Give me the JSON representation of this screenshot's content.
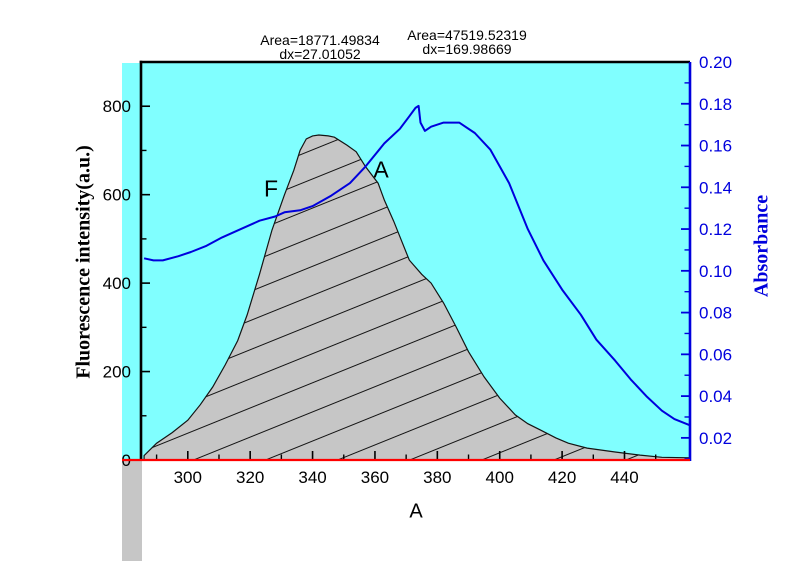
{
  "colors": {
    "figure_background": "#FFFFFF",
    "plot_background": "#80FFFF",
    "fluorescence_fill": "#C6C6C6",
    "fluorescence_outline": "#141414",
    "hatch_line": "#141414",
    "absorbance_line": "#0000DD",
    "right_axis": "#0000DD",
    "bottom_axis": "#FF0000",
    "frame": "#000000"
  },
  "chart_data": {
    "type": "line",
    "title": "",
    "annotations": {
      "block1": {
        "line1": "Area=18771.49834",
        "line2": "dx=27.01052"
      },
      "block2": {
        "line1": "Area=47519.52319",
        "line2": "dx=169.98669"
      }
    },
    "curve_labels": {
      "fluorescence": "F",
      "absorbance": "A"
    },
    "x_axis": {
      "label": "A",
      "range": [
        285,
        461
      ],
      "major_ticks": [
        "300",
        "320",
        "340",
        "360",
        "380",
        "400",
        "420",
        "440"
      ],
      "minor_ticks": [
        290,
        310,
        330,
        350,
        370,
        390,
        410,
        430,
        450
      ]
    },
    "y_left": {
      "label": "Fluorescence intensity(a.u.)",
      "range": [
        0,
        900
      ],
      "major_ticks": [
        "0",
        "200",
        "400",
        "600",
        "800"
      ],
      "minor_ticks": [
        100,
        300,
        500,
        700
      ]
    },
    "y_right": {
      "label": "Absorbance",
      "range": [
        0.0094,
        0.2
      ],
      "major_ticks": [
        "0.02",
        "0.04",
        "0.06",
        "0.08",
        "0.10",
        "0.12",
        "0.14",
        "0.16",
        "0.18",
        "0.20"
      ],
      "minor_ticks": [
        0.01,
        0.03,
        0.05,
        0.07,
        0.09,
        0.11,
        0.13,
        0.15,
        0.17,
        0.19
      ]
    },
    "series": [
      {
        "name": "F",
        "axis": "left",
        "style": "filled_hatched_area",
        "points": [
          [
            286,
            10
          ],
          [
            290,
            38
          ],
          [
            295,
            62
          ],
          [
            300,
            90
          ],
          [
            304,
            125
          ],
          [
            308,
            165
          ],
          [
            312,
            215
          ],
          [
            316,
            270
          ],
          [
            319,
            328
          ],
          [
            323,
            420
          ],
          [
            327,
            520
          ],
          [
            331,
            600
          ],
          [
            334,
            655
          ],
          [
            336,
            700
          ],
          [
            338,
            726
          ],
          [
            340,
            733
          ],
          [
            342,
            735
          ],
          [
            345,
            733
          ],
          [
            347,
            730
          ],
          [
            351,
            712
          ],
          [
            354,
            697
          ],
          [
            357,
            663
          ],
          [
            361,
            626
          ],
          [
            363,
            588
          ],
          [
            366,
            540
          ],
          [
            368,
            505
          ],
          [
            371,
            452
          ],
          [
            375,
            420
          ],
          [
            378,
            400
          ],
          [
            382,
            355
          ],
          [
            386,
            301
          ],
          [
            390,
            245
          ],
          [
            395,
            188
          ],
          [
            400,
            140
          ],
          [
            405,
            102
          ],
          [
            409,
            82
          ],
          [
            413,
            68
          ],
          [
            418,
            50
          ],
          [
            422,
            38
          ],
          [
            428,
            27
          ],
          [
            437,
            18
          ],
          [
            445,
            11
          ],
          [
            452,
            6
          ],
          [
            461,
            5
          ]
        ]
      },
      {
        "name": "A",
        "axis": "right",
        "style": "line",
        "points": [
          [
            286,
            0.106
          ],
          [
            289,
            0.105
          ],
          [
            292,
            0.105
          ],
          [
            297,
            0.107
          ],
          [
            301,
            0.109
          ],
          [
            306,
            0.112
          ],
          [
            311,
            0.116
          ],
          [
            317,
            0.12
          ],
          [
            323,
            0.124
          ],
          [
            328,
            0.126
          ],
          [
            331,
            0.128
          ],
          [
            336,
            0.129
          ],
          [
            340,
            0.131
          ],
          [
            346,
            0.136
          ],
          [
            352,
            0.142
          ],
          [
            357,
            0.15
          ],
          [
            363,
            0.161
          ],
          [
            368,
            0.168
          ],
          [
            371,
            0.174
          ],
          [
            373,
            0.178
          ],
          [
            374,
            0.179
          ],
          [
            374.6,
            0.171
          ],
          [
            376,
            0.167
          ],
          [
            378,
            0.169
          ],
          [
            382,
            0.171
          ],
          [
            387,
            0.171
          ],
          [
            392,
            0.166
          ],
          [
            397,
            0.158
          ],
          [
            403,
            0.142
          ],
          [
            409,
            0.12
          ],
          [
            414,
            0.105
          ],
          [
            420,
            0.091
          ],
          [
            426,
            0.079
          ],
          [
            431,
            0.067
          ],
          [
            437,
            0.057
          ],
          [
            442,
            0.048
          ],
          [
            447,
            0.04
          ],
          [
            452,
            0.033
          ],
          [
            456,
            0.029
          ],
          [
            461,
            0.026
          ]
        ]
      }
    ]
  }
}
